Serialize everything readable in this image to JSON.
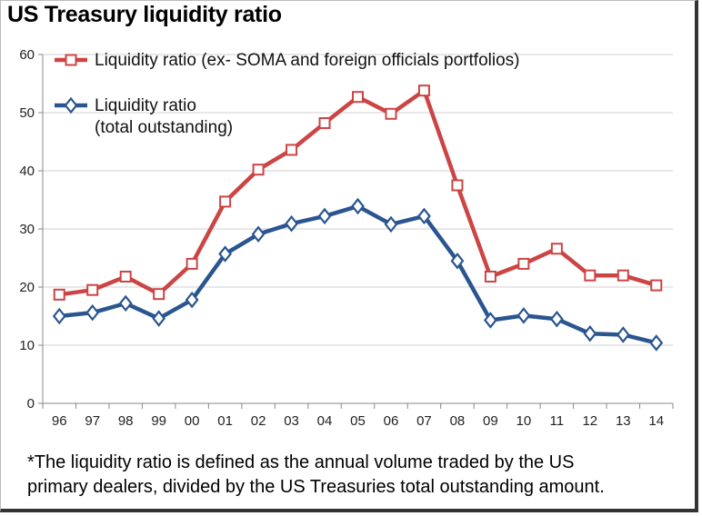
{
  "title": "US Treasury liquidity ratio",
  "footnote_line1": "*The liquidity ratio is defined as the annual volume traded by the US",
  "footnote_line2": "primary dealers, divided by the US Treasuries total outstanding amount.",
  "chart_data": {
    "type": "line",
    "title": "US Treasury liquidity ratio",
    "xlabel": "",
    "ylabel": "",
    "categories": [
      "96",
      "97",
      "98",
      "99",
      "00",
      "01",
      "02",
      "03",
      "04",
      "05",
      "06",
      "07",
      "08",
      "09",
      "10",
      "11",
      "12",
      "13",
      "14"
    ],
    "ylim": [
      0,
      60
    ],
    "yticks": [
      0,
      10,
      20,
      30,
      40,
      50,
      60
    ],
    "grid": true,
    "legend": "top-left",
    "series": [
      {
        "name": "Liquidity ratio (ex- SOMA and foreign officials portfolios)",
        "legend_lines": [
          "Liquidity ratio (ex- SOMA and foreign officials portfolios)"
        ],
        "marker": "square",
        "color": "#cc4444",
        "values": [
          18.7,
          19.5,
          21.8,
          18.8,
          24.0,
          34.7,
          40.2,
          43.6,
          48.2,
          52.7,
          49.8,
          53.8,
          37.5,
          21.8,
          24.0,
          26.6,
          22.0,
          22.0,
          20.3
        ]
      },
      {
        "name": "Liquidity ratio (total outstanding)",
        "legend_lines": [
          "Liquidity ratio",
          "(total outstanding)"
        ],
        "marker": "diamond",
        "color": "#2a5590",
        "values": [
          15.0,
          15.6,
          17.2,
          14.6,
          17.8,
          25.7,
          29.1,
          30.9,
          32.2,
          33.9,
          30.8,
          32.2,
          24.5,
          14.3,
          15.1,
          14.5,
          12.0,
          11.8,
          10.4
        ]
      }
    ]
  }
}
